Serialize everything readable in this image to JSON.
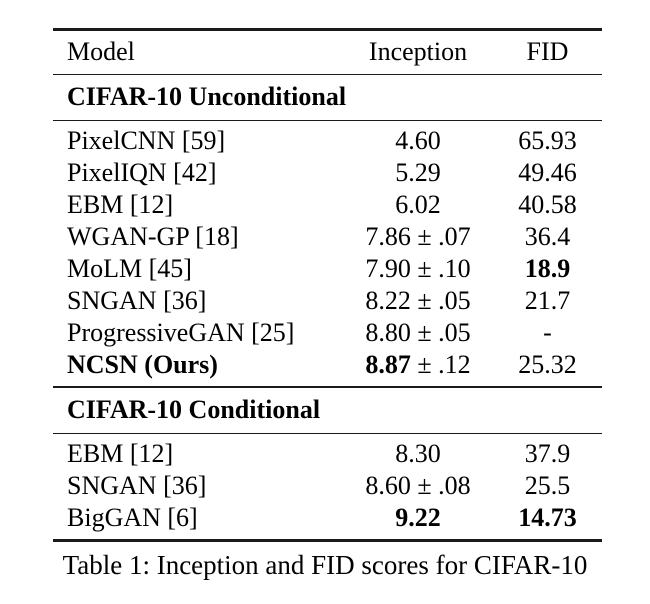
{
  "page": {
    "background": "#ffffff",
    "text_color": "#000000",
    "rule_color": "#1a1a1a"
  },
  "table": {
    "columns": [
      "Model",
      "Inception",
      "FID"
    ],
    "caption": "Table 1: Inception and FID scores for CIFAR-10",
    "sections": [
      {
        "title": "CIFAR-10 Unconditional",
        "rows": [
          {
            "model": "PixelCNN [59]",
            "model_bold": false,
            "inception": {
              "value": "4.60",
              "pm": "",
              "bold": false
            },
            "fid": {
              "value": "65.93",
              "bold": false
            }
          },
          {
            "model": "PixelIQN [42]",
            "model_bold": false,
            "inception": {
              "value": "5.29",
              "pm": "",
              "bold": false
            },
            "fid": {
              "value": "49.46",
              "bold": false
            }
          },
          {
            "model": "EBM [12]",
            "model_bold": false,
            "inception": {
              "value": "6.02",
              "pm": "",
              "bold": false
            },
            "fid": {
              "value": "40.58",
              "bold": false
            }
          },
          {
            "model": "WGAN-GP [18]",
            "model_bold": false,
            "inception": {
              "value": "7.86",
              "pm": "± .07",
              "bold": false
            },
            "fid": {
              "value": "36.4",
              "bold": false
            }
          },
          {
            "model": "MoLM [45]",
            "model_bold": false,
            "inception": {
              "value": "7.90",
              "pm": "± .10",
              "bold": false
            },
            "fid": {
              "value": "18.9",
              "bold": true
            }
          },
          {
            "model": "SNGAN [36]",
            "model_bold": false,
            "inception": {
              "value": "8.22",
              "pm": "± .05",
              "bold": false
            },
            "fid": {
              "value": "21.7",
              "bold": false
            }
          },
          {
            "model": "ProgressiveGAN [25]",
            "model_bold": false,
            "inception": {
              "value": "8.80",
              "pm": "± .05",
              "bold": false
            },
            "fid": {
              "value": "-",
              "bold": false
            }
          },
          {
            "model": "NCSN (Ours)",
            "model_bold": true,
            "inception": {
              "value": "8.87",
              "pm": "± .12",
              "bold": true
            },
            "fid": {
              "value": "25.32",
              "bold": false
            }
          }
        ]
      },
      {
        "title": "CIFAR-10 Conditional",
        "rows": [
          {
            "model": "EBM [12]",
            "model_bold": false,
            "inception": {
              "value": "8.30",
              "pm": "",
              "bold": false
            },
            "fid": {
              "value": "37.9",
              "bold": false
            }
          },
          {
            "model": "SNGAN [36]",
            "model_bold": false,
            "inception": {
              "value": "8.60",
              "pm": "± .08",
              "bold": false
            },
            "fid": {
              "value": "25.5",
              "bold": false
            }
          },
          {
            "model": "BigGAN [6]",
            "model_bold": false,
            "inception": {
              "value": "9.22",
              "pm": "",
              "bold": true
            },
            "fid": {
              "value": "14.73",
              "bold": true
            }
          }
        ]
      }
    ]
  }
}
